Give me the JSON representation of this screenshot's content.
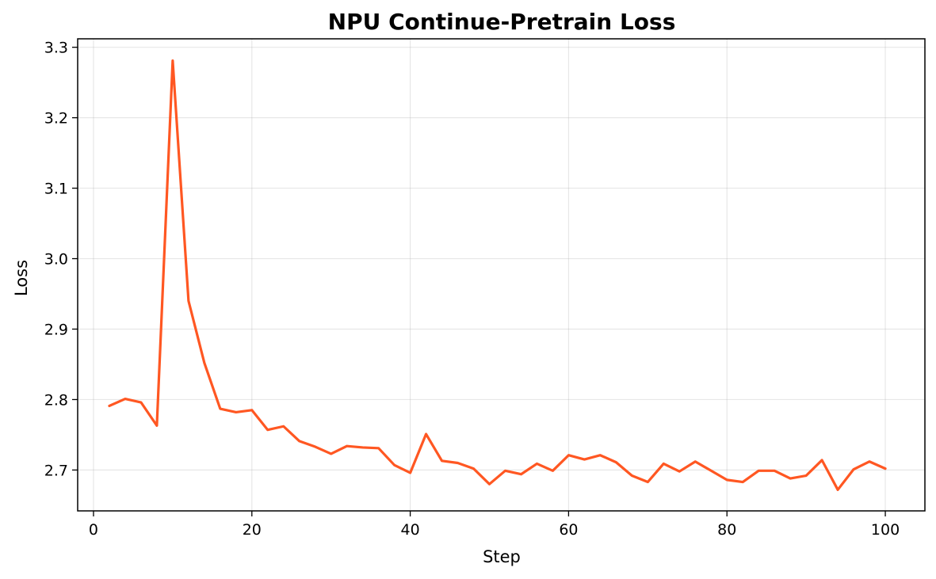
{
  "chart_data": {
    "type": "line",
    "title": "NPU Continue-Pretrain Loss",
    "xlabel": "Step",
    "ylabel": "Loss",
    "xlim": [
      -2,
      105
    ],
    "ylim": [
      2.642,
      3.312
    ],
    "x_ticks": [
      0,
      20,
      40,
      60,
      80,
      100
    ],
    "y_ticks": [
      2.7,
      2.8,
      2.9,
      3.0,
      3.1,
      3.2,
      3.3
    ],
    "grid": true,
    "legend": "none",
    "series": [
      {
        "color": "#ff5722",
        "x": [
          2,
          4,
          6,
          8,
          10,
          12,
          14,
          16,
          18,
          20,
          22,
          24,
          26,
          28,
          30,
          32,
          34,
          36,
          38,
          40,
          42,
          44,
          46,
          48,
          50,
          52,
          54,
          56,
          58,
          60,
          62,
          64,
          66,
          68,
          70,
          72,
          74,
          76,
          78,
          80,
          82,
          84,
          86,
          88,
          90,
          92,
          94,
          96,
          98,
          100
        ],
        "y": [
          2.791,
          2.801,
          2.796,
          2.763,
          3.281,
          2.94,
          2.852,
          2.787,
          2.782,
          2.785,
          2.757,
          2.762,
          2.741,
          2.733,
          2.723,
          2.734,
          2.732,
          2.731,
          2.707,
          2.696,
          2.751,
          2.713,
          2.71,
          2.702,
          2.68,
          2.699,
          2.694,
          2.709,
          2.699,
          2.721,
          2.715,
          2.721,
          2.711,
          2.692,
          2.683,
          2.709,
          2.698,
          2.712,
          2.699,
          2.686,
          2.683,
          2.699,
          2.699,
          2.688,
          2.692,
          2.714,
          2.672,
          2.701,
          2.712,
          2.702
        ]
      }
    ]
  }
}
